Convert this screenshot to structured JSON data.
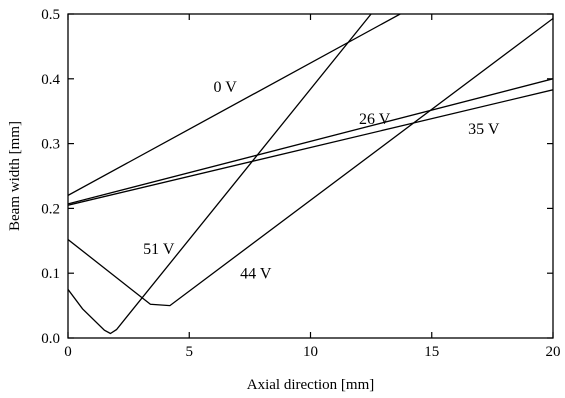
{
  "chart_data": {
    "type": "line",
    "xlabel": "Axial direction [mm]",
    "ylabel": "Beam width [mm]",
    "xlim": [
      0,
      20
    ],
    "ylim": [
      0,
      0.5
    ],
    "xticks": [
      0,
      5,
      10,
      15,
      20
    ],
    "xtick_labels": [
      "0",
      "5",
      "10",
      "15",
      "20"
    ],
    "yticks": [
      0,
      0.1,
      0.2,
      0.3,
      0.4,
      0.5
    ],
    "ytick_labels": [
      "0.0",
      "0.1",
      "0.2",
      "0.3",
      "0.4",
      "0.5"
    ],
    "grid": false,
    "legend": "none",
    "series": [
      {
        "name": "0 V",
        "x": [
          0,
          13.7
        ],
        "y": [
          0.22,
          0.5
        ],
        "label_at": [
          6.0,
          0.38
        ]
      },
      {
        "name": "26 V",
        "x": [
          0,
          20
        ],
        "y": [
          0.207,
          0.4
        ],
        "label_at": [
          12.0,
          0.33
        ]
      },
      {
        "name": "35 V",
        "x": [
          0,
          20
        ],
        "y": [
          0.205,
          0.383
        ],
        "label_at": [
          16.5,
          0.315
        ]
      },
      {
        "name": "51 V",
        "x": [
          0,
          0.6,
          1.5,
          1.75,
          2.0,
          12.5
        ],
        "y": [
          0.075,
          0.045,
          0.012,
          0.007,
          0.013,
          0.5
        ],
        "label_at": [
          3.1,
          0.13
        ]
      },
      {
        "name": "44 V",
        "x": [
          0,
          3.4,
          4.2,
          20
        ],
        "y": [
          0.152,
          0.052,
          0.05,
          0.493
        ],
        "label_at": [
          7.1,
          0.092
        ]
      }
    ]
  }
}
